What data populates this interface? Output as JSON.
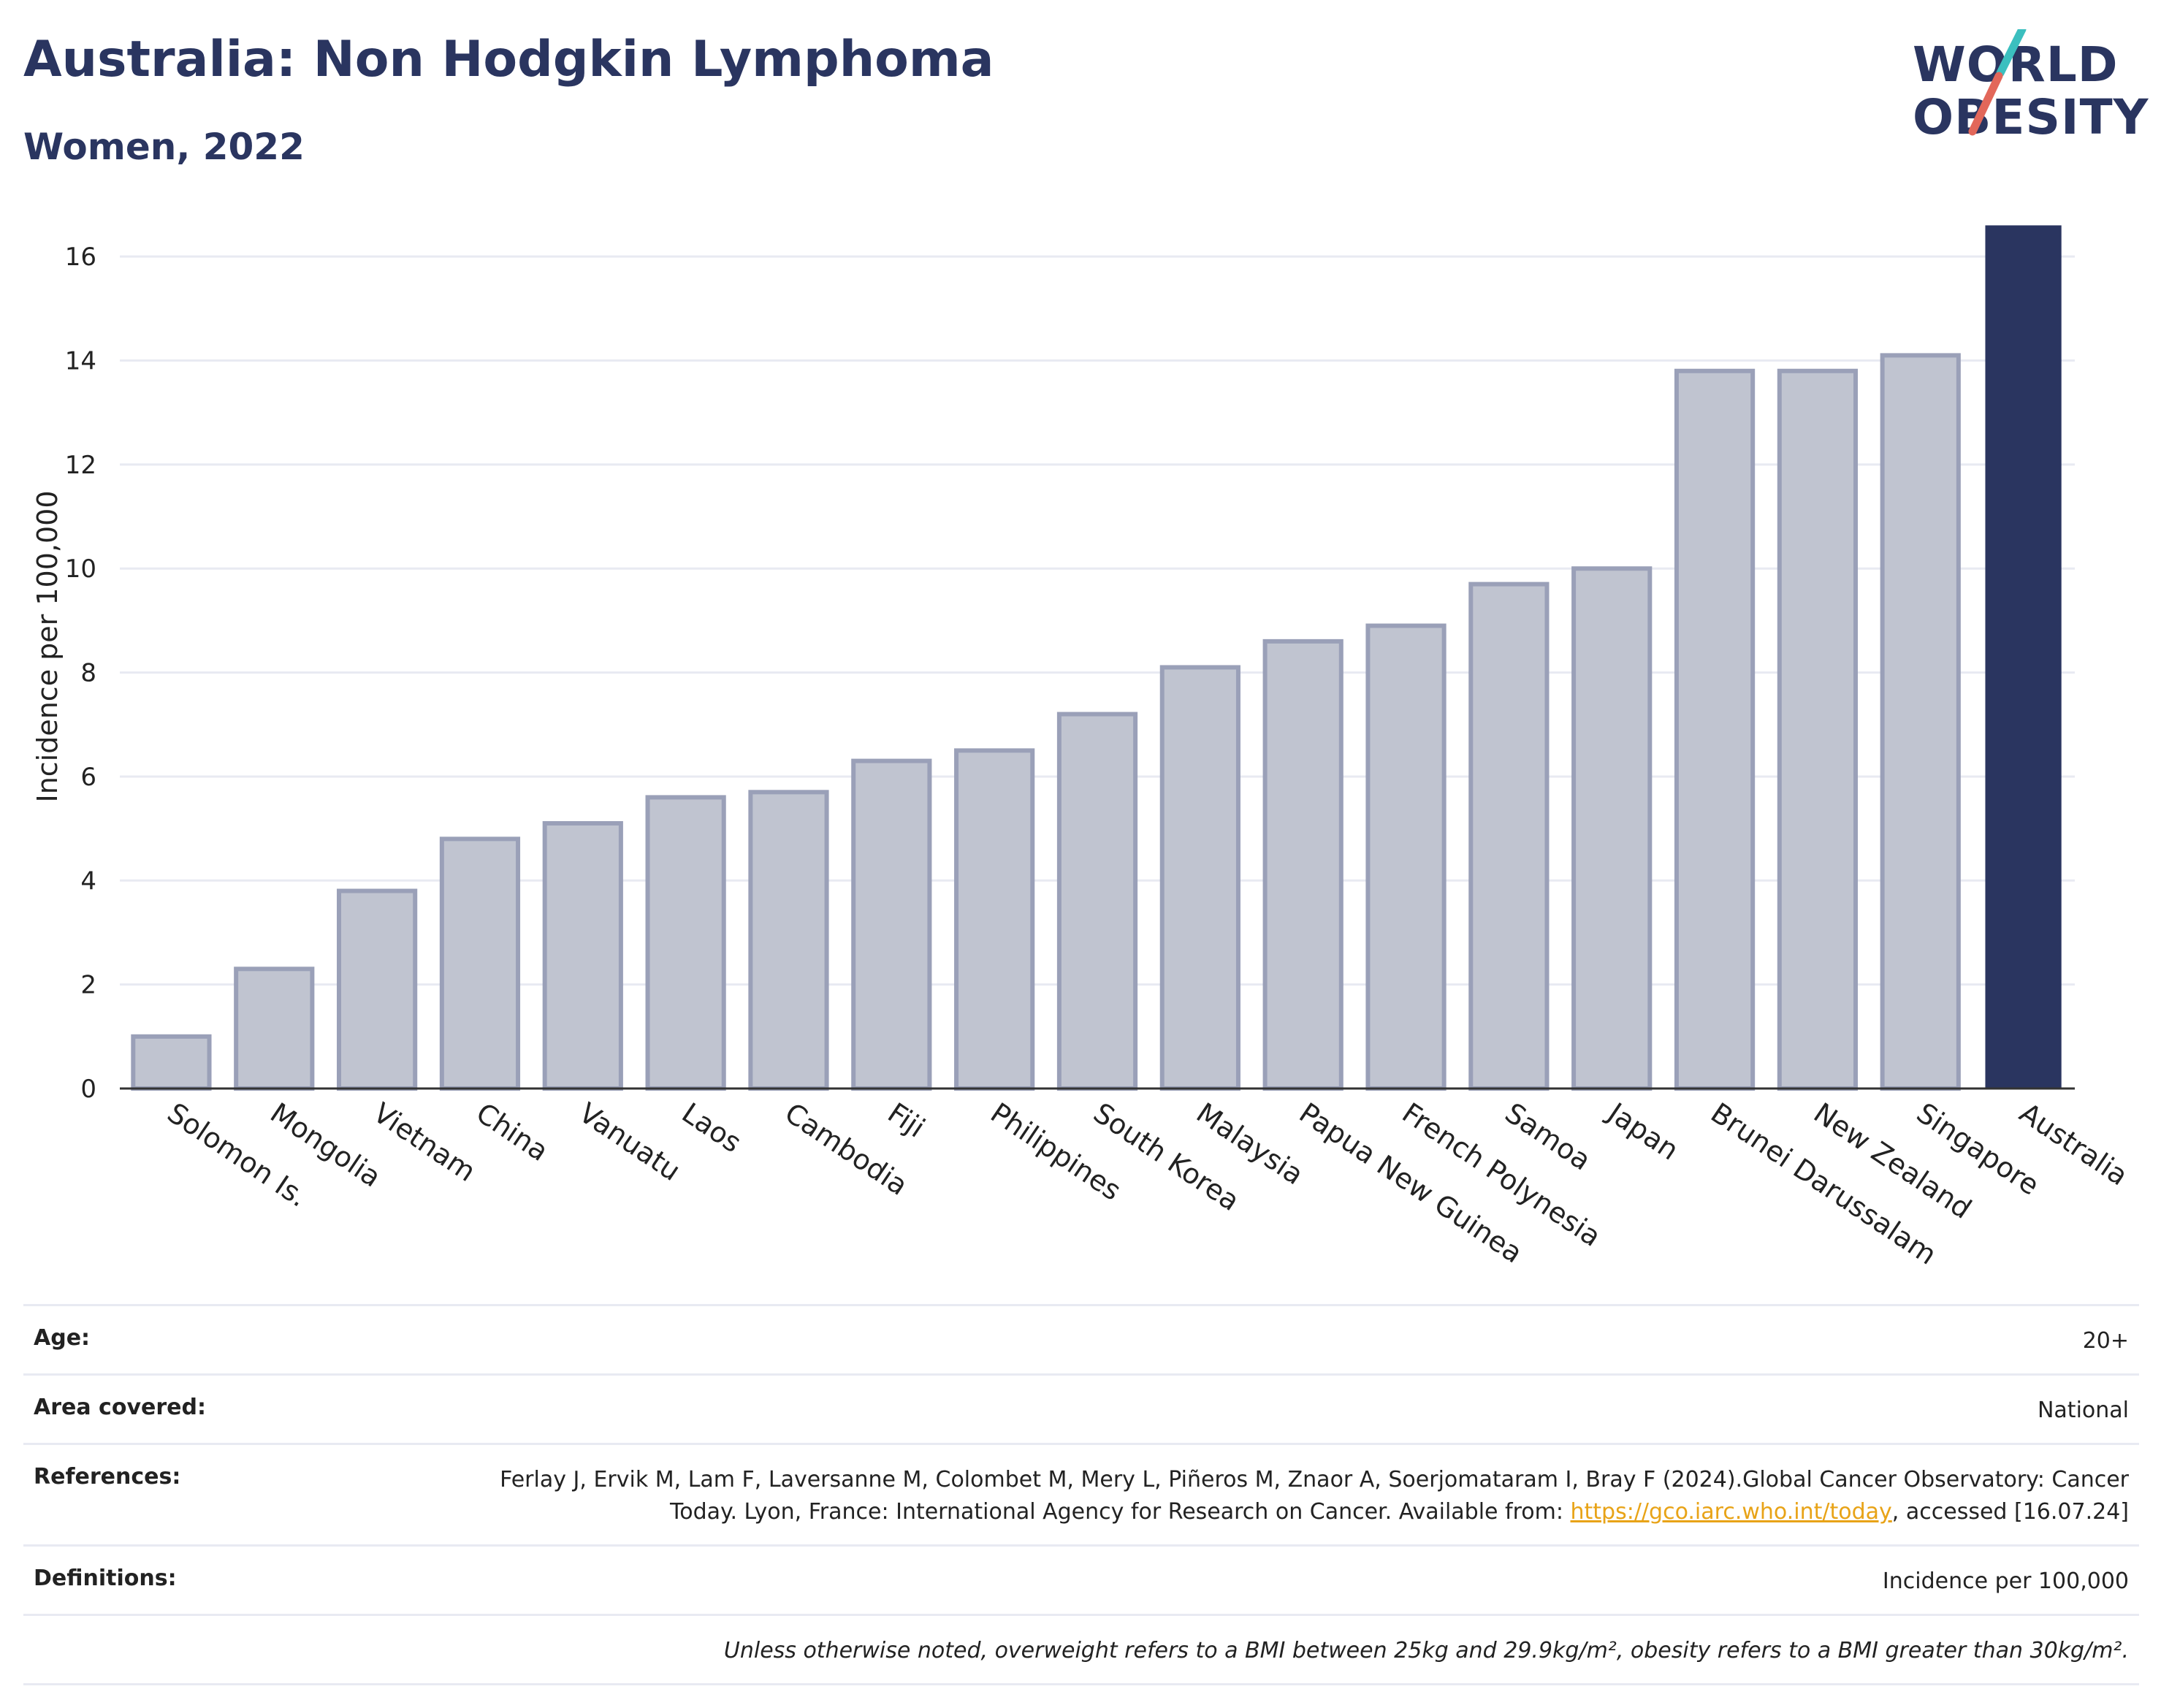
{
  "header": {
    "title": "Australia: Non Hodgkin Lymphoma",
    "subtitle": "Women, 2022"
  },
  "logo": {
    "line1": "WORLD",
    "line2": "OBESITY",
    "accent_teal": "#3bbfbf",
    "accent_coral": "#e2675a"
  },
  "colors": {
    "bar_default": "#c0c4d0",
    "bar_default_border": "#9aa0b8",
    "bar_highlight": "#2a3560",
    "gridline": "#e8eaf2",
    "axis_line": "#333333"
  },
  "chart_data": {
    "type": "bar",
    "ylabel": "Incidence per 100,000",
    "xlabel": "",
    "ylim": [
      0,
      17
    ],
    "yticks": [
      0,
      2,
      4,
      6,
      8,
      10,
      12,
      14,
      16
    ],
    "grid": true,
    "categories": [
      "Solomon Is.",
      "Mongolia",
      "Vietnam",
      "China",
      "Vanuatu",
      "Laos",
      "Cambodia",
      "Fiji",
      "Philippines",
      "South Korea",
      "Malaysia",
      "Papua New Guinea",
      "French Polynesia",
      "Samoa",
      "Japan",
      "Brunei Darussalam",
      "New Zealand",
      "Singapore",
      "Australia"
    ],
    "values": [
      1.0,
      2.3,
      3.8,
      4.8,
      5.1,
      5.6,
      5.7,
      6.3,
      6.5,
      7.2,
      8.1,
      8.6,
      8.9,
      9.7,
      10.0,
      13.8,
      13.8,
      14.1,
      16.6
    ],
    "highlight": "Australia"
  },
  "meta": {
    "age_label": "Age:",
    "age_value": "20+",
    "area_label": "Area covered:",
    "area_value": "National",
    "references_label": "References:",
    "references_text_1": "Ferlay J, Ervik M, Lam F, Laversanne M, Colombet M, Mery L, Piñeros M, Znaor A, Soerjomataram I, Bray F (2024).Global Cancer Observatory: Cancer Today. Lyon, France: International Agency for Research on Cancer. Available from: ",
    "references_link": "https://gco.iarc.who.int/today",
    "references_text_2": ", accessed [16.07.24]",
    "definitions_label": "Definitions:",
    "definitions_value": "Incidence per 100,000",
    "note": "Unless otherwise noted, overweight refers to a BMI between 25kg and 29.9kg/m², obesity refers to a BMI greater than 30kg/m²."
  }
}
